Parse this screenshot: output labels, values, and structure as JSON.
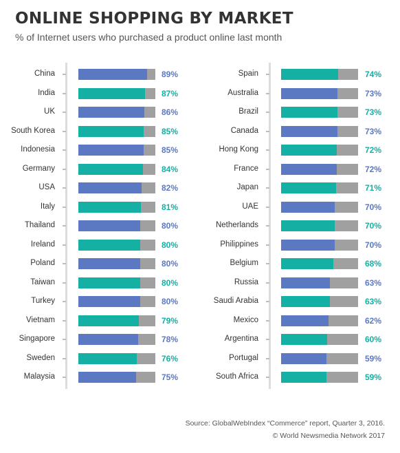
{
  "title": "ONLINE SHOPPING BY MARKET",
  "subtitle": "% of Internet users who purchased a product online last month",
  "footer": {
    "source": "Source: GlobalWebIndex “Commerce” report, Quarter 3, 2016.",
    "copyright": "© World Newsmedia Network 2017"
  },
  "colors": {
    "blue": "#5b78c2",
    "teal": "#14b0a4",
    "remainder": "#a0a0a0",
    "axis": "#dcdcdc"
  },
  "chart_data": {
    "type": "bar",
    "orientation": "horizontal",
    "title": "ONLINE SHOPPING BY MARKET",
    "subtitle": "% of Internet users who purchased a product online last month",
    "xlim": [
      0,
      100
    ],
    "unit": "%",
    "color_pattern": "alternating blue / teal rows",
    "panels": [
      {
        "categories": [
          "China",
          "India",
          "UK",
          "South Korea",
          "Indonesia",
          "Germany",
          "USA",
          "Italy",
          "Thailand",
          "Ireland",
          "Poland",
          "Taiwan",
          "Turkey",
          "Vietnam",
          "Singapore",
          "Sweden",
          "Malaysia"
        ],
        "values": [
          89,
          87,
          86,
          85,
          85,
          84,
          82,
          81,
          80,
          80,
          80,
          80,
          80,
          79,
          78,
          76,
          75
        ],
        "value_labels": [
          "89%",
          "87%",
          "86%",
          "85%",
          "85%",
          "84%",
          "82%",
          "81%",
          "80%",
          "80%",
          "80%",
          "80%",
          "80%",
          "79%",
          "78%",
          "76%",
          "75%"
        ],
        "first_color": "blue"
      },
      {
        "categories": [
          "Spain",
          "Australia",
          "Brazil",
          "Canada",
          "Hong Kong",
          "France",
          "Japan",
          "UAE",
          "Netherlands",
          "Philippines",
          "Belgium",
          "Russia",
          "Saudi Arabia",
          "Mexico",
          "Argentina",
          "Portugal",
          "South Africa"
        ],
        "values": [
          74,
          73,
          73,
          73,
          72,
          72,
          71,
          70,
          70,
          70,
          68,
          63,
          63,
          62,
          60,
          59,
          59
        ],
        "value_labels": [
          "74%",
          "73%",
          "73%",
          "73%",
          "72%",
          "72%",
          "71%",
          "70%",
          "70%",
          "70%",
          "68%",
          "63%",
          "63%",
          "62%",
          "60%",
          "59%",
          "59%"
        ],
        "first_color": "teal"
      }
    ]
  }
}
